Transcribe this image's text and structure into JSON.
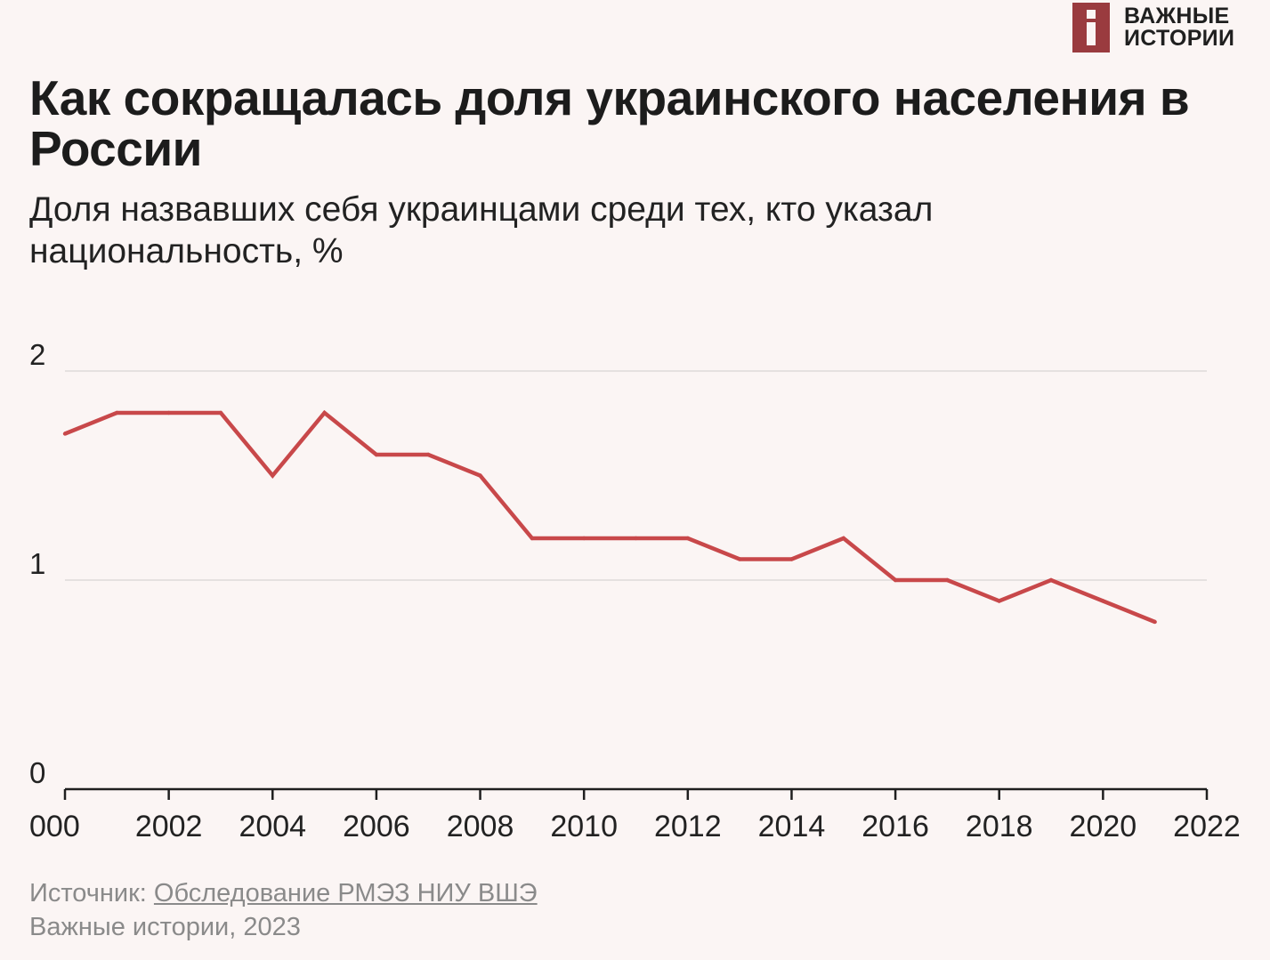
{
  "logo": {
    "line1": "ВАЖНЫЕ",
    "line2": "ИСТОРИИ"
  },
  "title": "Как сокращалась доля украинского населения в России",
  "subtitle": "Доля назвавших себя украинцами среди тех, кто указал национальность, %",
  "colors": {
    "background": "#fbf5f4",
    "line": "#c8484a",
    "grid": "#e5e1e0",
    "axis": "#1f1f1f",
    "logo": "#9a3b3f"
  },
  "chart_data": {
    "type": "line",
    "title": "Как сокращалась доля украинского населения в России",
    "xlabel": "",
    "ylabel": "",
    "xlim": [
      2000,
      2022
    ],
    "ylim": [
      0,
      2
    ],
    "grid": true,
    "x_tick_labels": [
      "000",
      "2002",
      "2004",
      "2006",
      "2008",
      "2010",
      "2012",
      "2014",
      "2016",
      "2018",
      "2020",
      "2022"
    ],
    "y_ticks": [
      0,
      1,
      2
    ],
    "series": [
      {
        "x": [
          2000,
          2001,
          2002,
          2003,
          2004,
          2005,
          2006,
          2007,
          2008,
          2009,
          2010,
          2011,
          2012,
          2013,
          2014,
          2015,
          2016,
          2017,
          2018,
          2019,
          2020,
          2021
        ],
        "values": [
          1.7,
          1.8,
          1.8,
          1.8,
          1.5,
          1.8,
          1.6,
          1.6,
          1.5,
          1.2,
          1.2,
          1.2,
          1.2,
          1.1,
          1.1,
          1.2,
          1.0,
          1.0,
          0.9,
          1.0,
          0.9,
          0.8
        ],
        "color": "#c8484a"
      }
    ]
  },
  "footer": {
    "source_prefix": "Источник: ",
    "source_link": "Обследование РМЭЗ НИУ ВШЭ",
    "credit": "Важные истории, 2023"
  }
}
